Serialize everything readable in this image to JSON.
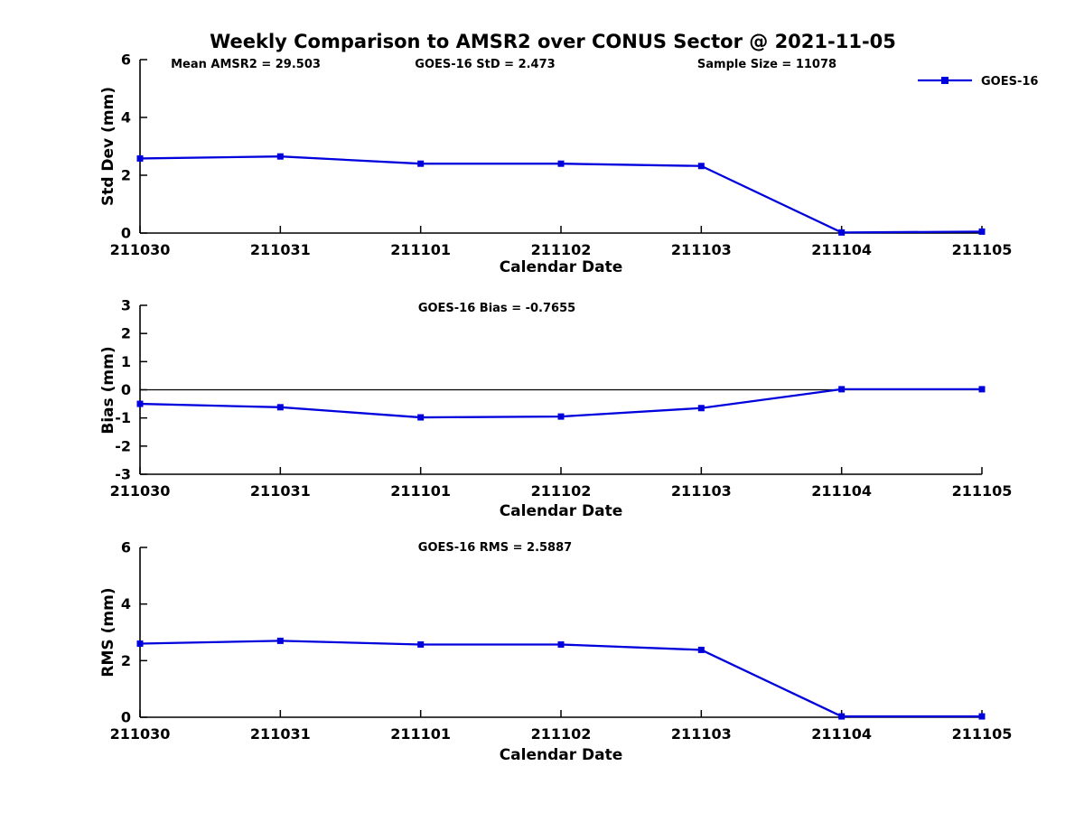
{
  "figure": {
    "title": "Weekly Comparison to AMSR2 over CONUS Sector @ 2021-11-05",
    "background_color": "#ffffff",
    "text_color": "#000000",
    "line_color": "#0000dd",
    "legend": {
      "label": "GOES-16",
      "position": "top-right-outside"
    }
  },
  "chart_data": [
    {
      "type": "line",
      "title": "",
      "annotations": [
        "Mean AMSR2 = 29.503",
        "GOES-16 StD = 2.473",
        "Sample Size = 11078"
      ],
      "xlabel": "Calendar Date",
      "ylabel": "Std Dev (mm)",
      "categories": [
        "211030",
        "211031",
        "211101",
        "211102",
        "211103",
        "211104",
        "211105"
      ],
      "series": [
        {
          "name": "GOES-16",
          "values": [
            2.58,
            2.65,
            2.4,
            2.4,
            2.32,
            0.02,
            0.05
          ]
        }
      ],
      "ylim": [
        0,
        6
      ],
      "yticks": [
        0,
        2,
        4,
        6
      ],
      "zero_line": false,
      "grid": false,
      "marker": "square"
    },
    {
      "type": "line",
      "title": "GOES-16 Bias  = -0.7655",
      "annotations": [],
      "xlabel": "Calendar Date",
      "ylabel": "Bias (mm)",
      "categories": [
        "211030",
        "211031",
        "211101",
        "211102",
        "211103",
        "211104",
        "211105"
      ],
      "series": [
        {
          "name": "GOES-16",
          "values": [
            -0.5,
            -0.62,
            -0.98,
            -0.95,
            -0.65,
            0.02,
            0.02
          ]
        }
      ],
      "ylim": [
        -3,
        3
      ],
      "yticks": [
        -3,
        -2,
        -1,
        0,
        1,
        2,
        3
      ],
      "zero_line": true,
      "grid": false,
      "marker": "square"
    },
    {
      "type": "line",
      "title": "GOES-16 RMS = 2.5887",
      "annotations": [],
      "xlabel": "Calendar Date",
      "ylabel": "RMS (mm)",
      "categories": [
        "211030",
        "211031",
        "211101",
        "211102",
        "211103",
        "211104",
        "211105"
      ],
      "series": [
        {
          "name": "GOES-16",
          "values": [
            2.6,
            2.7,
            2.57,
            2.57,
            2.38,
            0.03,
            0.03
          ]
        }
      ],
      "ylim": [
        0,
        6
      ],
      "yticks": [
        0,
        2,
        4,
        6
      ],
      "zero_line": false,
      "grid": false,
      "marker": "square"
    }
  ]
}
